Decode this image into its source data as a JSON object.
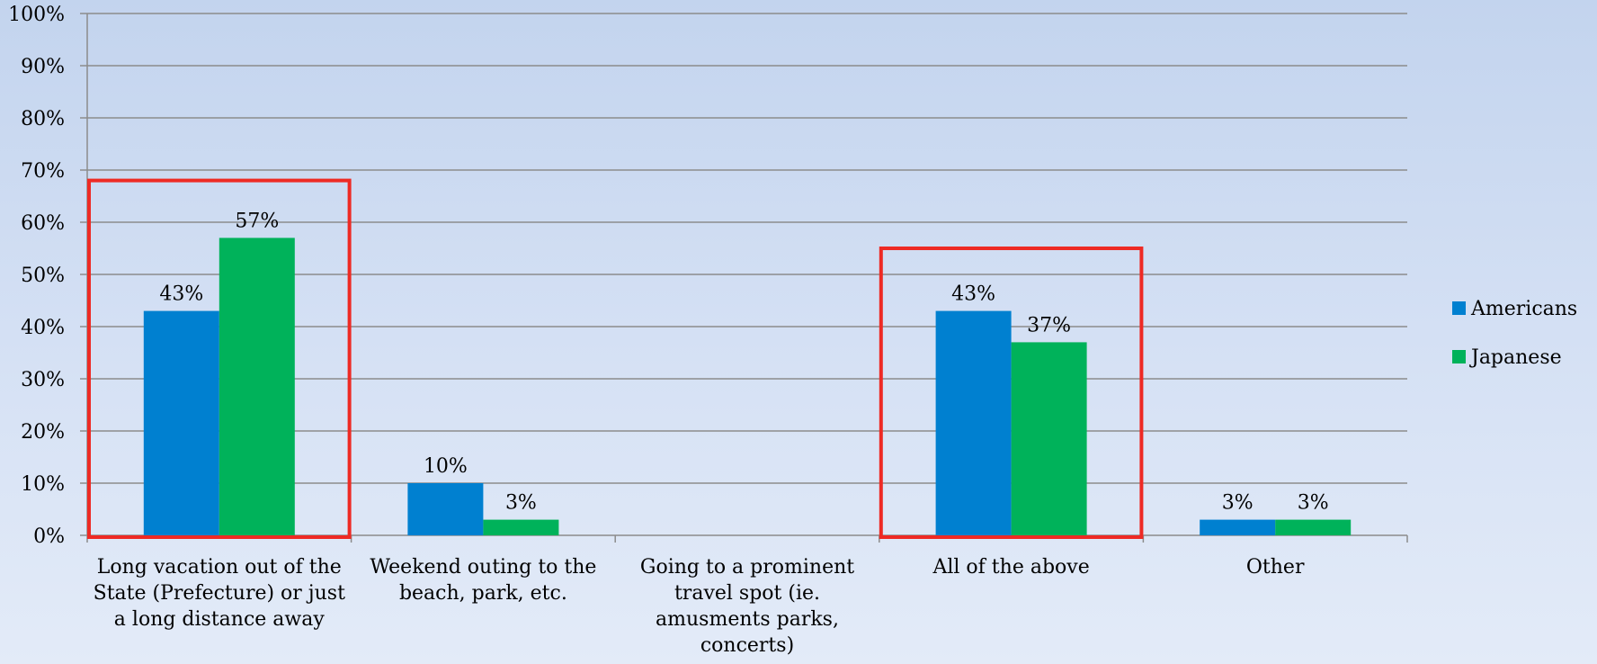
{
  "chart_data": {
    "type": "bar",
    "title": "",
    "xlabel": "",
    "ylabel": "",
    "ylim": [
      0,
      100
    ],
    "yticks": [
      "0%",
      "10%",
      "20%",
      "30%",
      "40%",
      "50%",
      "60%",
      "70%",
      "80%",
      "90%",
      "100%"
    ],
    "grid": true,
    "legend_position": "right",
    "categories": [
      [
        "Long vacation out of the",
        "State (Prefecture) or just",
        "a long distance away"
      ],
      [
        "Weekend outing to the",
        "beach, park, etc."
      ],
      [
        "Going to a prominent",
        "travel spot (ie.",
        "amusments parks,",
        "concerts)"
      ],
      [
        "All of the above"
      ],
      [
        "Other"
      ]
    ],
    "series": [
      {
        "name": "Americans",
        "color": "#0080d0",
        "values": [
          43,
          10,
          null,
          43,
          3
        ],
        "labels": [
          "43%",
          "10%",
          "",
          "43%",
          "3%"
        ]
      },
      {
        "name": "Japanese",
        "color": "#00b25a",
        "values": [
          57,
          3,
          null,
          37,
          3
        ],
        "labels": [
          "57%",
          "3%",
          "",
          "37%",
          "3%"
        ]
      }
    ],
    "highlight_boxes": [
      {
        "category_index": 0,
        "top_value": 68,
        "color": "#ee2a24"
      },
      {
        "category_index": 3,
        "top_value": 55,
        "color": "#ee2a24"
      }
    ]
  }
}
